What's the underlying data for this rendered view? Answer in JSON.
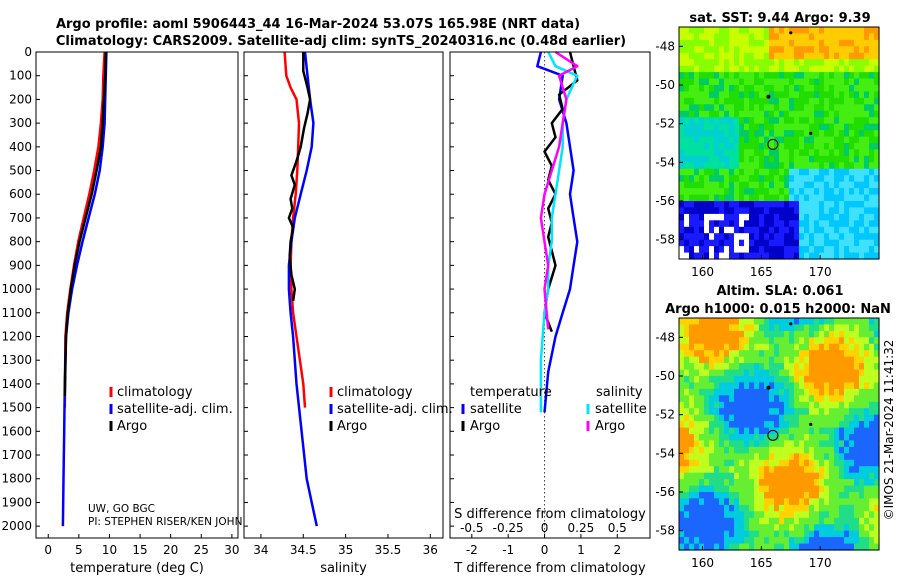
{
  "titles": {
    "main_line1": "Argo profile: aoml 5906443_44 16-Mar-2024 53.07S 165.98E (NRT data)",
    "main_line2": "Climatology: CARS2009. Satellite-adj clim: synTS_20240316.nc (0.48d earlier)",
    "sst_map": "sat. SST: 9.44 Argo: 9.39",
    "sla_line1": "Altim. SLA: 0.061",
    "sla_line2": "Argo h1000: 0.015 h2000: NaN",
    "watermark": "©IMOS 21-Mar-2024 11:41:32"
  },
  "annotation": {
    "line1": "UW, GO BGC",
    "line2": "PI: STEPHEN RISER/KEN JOHN"
  },
  "colors": {
    "climatology": "#ff0000",
    "satellite_adj": "#0000ff",
    "argo": "#000000",
    "sat_temp": "#0000ff",
    "sat_sal": "#00e5ff",
    "argo_sal": "#ff00ff"
  },
  "chart_data": [
    {
      "type": "line",
      "name": "temperature-profile",
      "xlabel": "temperature (deg C)",
      "ylabel": "",
      "xlim": [
        -2,
        31
      ],
      "ylim": [
        2050,
        0
      ],
      "xticks": [
        "0",
        "5",
        "10",
        "15",
        "20",
        "25",
        "30"
      ],
      "xtick_values": [
        0,
        5,
        10,
        15,
        20,
        25,
        30
      ],
      "yticks": [
        "0",
        "100",
        "200",
        "300",
        "400",
        "500",
        "600",
        "700",
        "800",
        "900",
        "1000",
        "1100",
        "1200",
        "1300",
        "1400",
        "1500",
        "1600",
        "1700",
        "1800",
        "1900",
        "2000"
      ],
      "ytick_values": [
        0,
        100,
        200,
        300,
        400,
        500,
        600,
        700,
        800,
        900,
        1000,
        1100,
        1200,
        1300,
        1400,
        1500,
        1600,
        1700,
        1800,
        1900,
        2000
      ],
      "legend": [
        "climatology",
        "satellite-adj. clim.",
        "Argo"
      ],
      "series": [
        {
          "name": "climatology",
          "color": "#ff0000",
          "x": [
            9.2,
            9.0,
            8.9,
            8.6,
            8.2,
            7.5,
            6.7,
            5.8,
            4.9,
            4.2,
            3.6,
            3.1,
            2.8,
            2.7
          ],
          "y": [
            0,
            100,
            200,
            300,
            400,
            500,
            600,
            700,
            800,
            900,
            1000,
            1100,
            1200,
            1500
          ]
        },
        {
          "name": "satellite-adj. clim.",
          "color": "#0000ff",
          "x": [
            9.5,
            9.4,
            9.3,
            9.2,
            8.9,
            8.4,
            7.6,
            6.6,
            5.6,
            4.7,
            3.9,
            3.3,
            2.9,
            2.7,
            2.6,
            2.5,
            2.4
          ],
          "y": [
            0,
            100,
            200,
            300,
            400,
            500,
            600,
            700,
            800,
            900,
            1000,
            1100,
            1200,
            1400,
            1600,
            1800,
            2000
          ]
        },
        {
          "name": "Argo",
          "color": "#000000",
          "x": [
            9.4,
            9.3,
            9.1,
            8.9,
            8.6,
            7.9,
            7.1,
            6.1,
            5.1,
            4.3,
            3.7,
            3.2,
            2.9,
            2.7
          ],
          "y": [
            0,
            100,
            200,
            300,
            400,
            500,
            600,
            700,
            800,
            900,
            1000,
            1100,
            1200,
            1450
          ]
        }
      ]
    },
    {
      "type": "line",
      "name": "salinity-profile",
      "xlabel": "salinity",
      "xlim": [
        33.8,
        36.15
      ],
      "ylim": [
        2050,
        0
      ],
      "xticks": [
        "34",
        "34.5",
        "35",
        "35.5",
        "36"
      ],
      "xtick_values": [
        34,
        34.5,
        35,
        35.5,
        36
      ],
      "legend": [
        "climatology",
        "satellite-adj. clim.",
        "Argo"
      ],
      "series": [
        {
          "name": "climatology",
          "color": "#ff0000",
          "x": [
            34.28,
            34.3,
            34.35,
            34.42,
            34.45,
            34.44,
            34.43,
            34.41,
            34.38,
            34.36,
            34.35,
            34.36,
            34.38,
            34.42,
            34.46,
            34.5,
            34.52
          ],
          "y": [
            0,
            100,
            150,
            200,
            300,
            400,
            500,
            600,
            700,
            800,
            900,
            1000,
            1100,
            1200,
            1300,
            1400,
            1500
          ]
        },
        {
          "name": "satellite-adj. clim.",
          "color": "#0000ff",
          "x": [
            34.52,
            34.55,
            34.58,
            34.62,
            34.6,
            34.54,
            34.47,
            34.4,
            34.36,
            34.33,
            34.33,
            34.35,
            34.38,
            34.42,
            34.48,
            34.54,
            34.6,
            34.66
          ],
          "y": [
            0,
            100,
            200,
            300,
            400,
            500,
            600,
            700,
            800,
            900,
            1000,
            1100,
            1200,
            1400,
            1600,
            1800,
            1900,
            2000
          ]
        },
        {
          "name": "Argo",
          "color": "#000000",
          "x": [
            34.5,
            34.5,
            34.55,
            34.58,
            34.55,
            34.51,
            34.47,
            34.42,
            34.36,
            34.4,
            34.35,
            34.37,
            34.33,
            34.38,
            34.35,
            34.34,
            34.36,
            34.4,
            34.38
          ],
          "y": [
            0,
            80,
            150,
            200,
            260,
            320,
            400,
            460,
            520,
            560,
            620,
            660,
            700,
            740,
            800,
            860,
            940,
            1000,
            1050
          ]
        }
      ]
    },
    {
      "type": "line",
      "name": "difference-profile",
      "xlabel": "T difference from climatology",
      "xlabel_top": "S difference from climatology",
      "xlim": [
        -2.6,
        2.9
      ],
      "ylim": [
        2050,
        0
      ],
      "xticks": [
        "-2",
        "-1",
        "0",
        "1",
        "2"
      ],
      "xtick_values": [
        -2,
        -1,
        0,
        1,
        2
      ],
      "sticks": [
        "-0.5",
        "-0.25",
        "0",
        "0.25",
        "0.5"
      ],
      "stick_values": [
        -0.5,
        -0.25,
        0,
        0.25,
        0.5
      ],
      "legend_headers": [
        "temperature",
        "salinity"
      ],
      "legend_temp": [
        "satellite",
        "Argo"
      ],
      "legend_sal": [
        "satellite",
        "Argo"
      ],
      "series": [
        {
          "name": "temp-satellite",
          "color": "#0000ff",
          "x": [
            -0.1,
            -0.2,
            0.5,
            0.4,
            0.6,
            0.7,
            0.8,
            0.7,
            0.8,
            0.9,
            0.8,
            0.7,
            0.5,
            0.3,
            0.1,
            0.0
          ],
          "y": [
            0,
            60,
            100,
            200,
            300,
            400,
            500,
            600,
            700,
            800,
            900,
            1000,
            1100,
            1200,
            1350,
            1520
          ]
        },
        {
          "name": "temp-argo",
          "color": "#000000",
          "x": [
            0.7,
            0.8,
            0.9,
            0.4,
            0.5,
            0.2,
            0.3,
            0.0,
            0.2,
            0.1,
            0.3,
            0.1,
            0.2,
            0.1,
            0.3,
            0.1,
            0.0,
            0.2
          ],
          "y": [
            0,
            60,
            120,
            180,
            240,
            300,
            360,
            420,
            480,
            540,
            600,
            660,
            720,
            780,
            900,
            1000,
            1100,
            1180
          ]
        },
        {
          "name": "sal-satellite",
          "color": "#00e5ff",
          "x": [
            0.1,
            0.3,
            0.9,
            0.6,
            0.5,
            0.5,
            0.4,
            0.3,
            0.2,
            0.2,
            0.1,
            0.1,
            0.0,
            -0.1,
            -0.1
          ],
          "y": [
            0,
            60,
            100,
            200,
            300,
            400,
            500,
            600,
            700,
            800,
            900,
            1000,
            1100,
            1300,
            1520
          ]
        },
        {
          "name": "sal-argo",
          "color": "#ff00ff",
          "x": [
            0.3,
            0.9,
            0.4,
            0.6,
            0.5,
            0.4,
            0.2,
            0.0,
            -0.1,
            0.0,
            0.1,
            0.0,
            0.1
          ],
          "y": [
            0,
            60,
            100,
            200,
            300,
            400,
            500,
            600,
            700,
            800,
            900,
            1000,
            1170
          ]
        }
      ]
    },
    {
      "type": "heatmap",
      "name": "sst-map",
      "title": "sat. SST: 9.44 Argo: 9.39",
      "xlim": [
        158,
        175
      ],
      "ylim": [
        -59,
        -47
      ],
      "xticks": [
        "160",
        "165",
        "170"
      ],
      "xtick_values": [
        160,
        165,
        170
      ],
      "yticks": [
        "-48",
        "-50",
        "-52",
        "-54",
        "-56",
        "-58"
      ],
      "ytick_values": [
        -48,
        -50,
        -52,
        -54,
        -56,
        -58
      ],
      "argo_position": {
        "lon": 165.98,
        "lat": -53.07
      }
    },
    {
      "type": "heatmap",
      "name": "sla-map",
      "title": "Altim. SLA: 0.061",
      "xlim": [
        158,
        175
      ],
      "ylim": [
        -59,
        -47
      ],
      "xticks": [
        "160",
        "165",
        "170"
      ],
      "xtick_values": [
        160,
        165,
        170
      ],
      "yticks": [
        "-48",
        "-50",
        "-52",
        "-54",
        "-56",
        "-58"
      ],
      "ytick_values": [
        -48,
        -50,
        -52,
        -54,
        -56,
        -58
      ],
      "argo_position": {
        "lon": 165.98,
        "lat": -53.07
      }
    }
  ]
}
